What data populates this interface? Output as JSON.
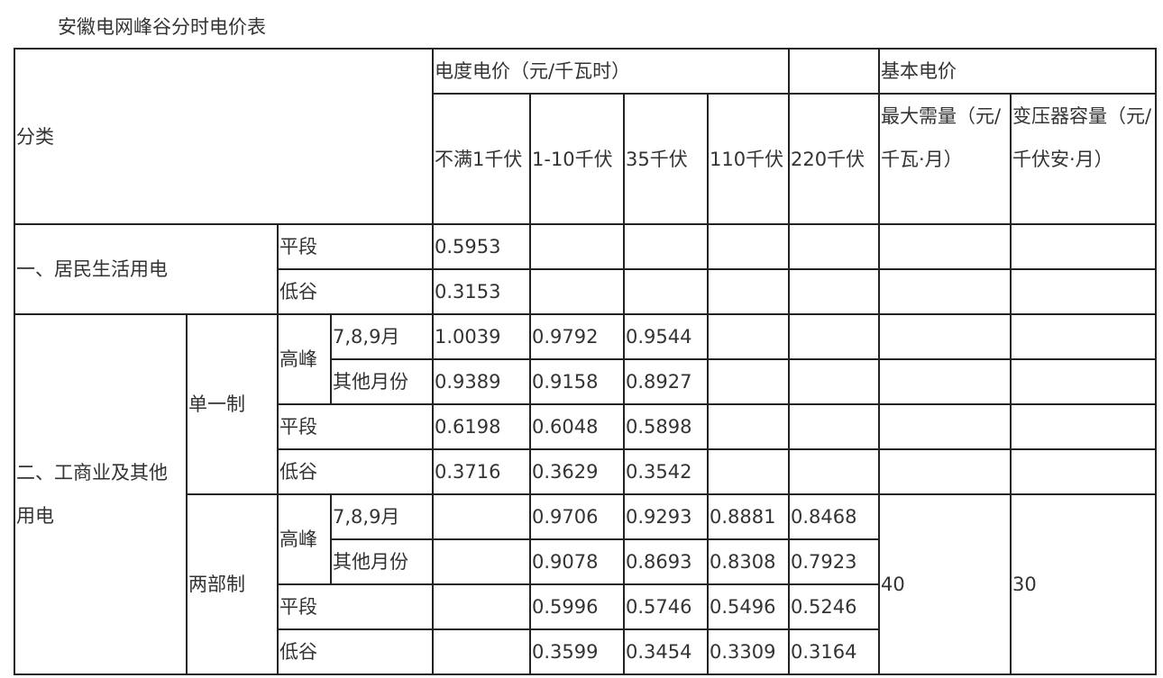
{
  "title": "安徽电网峰谷分时电价表",
  "header": {
    "category": "分类",
    "energy_price": "电度电价（元/千瓦时）",
    "basic_price": "基本电价",
    "voltages": [
      "不满1千伏",
      "1-10千伏",
      "35千伏",
      "110千伏",
      "220千伏"
    ],
    "max_demand": "最大需量（元/千瓦·月）",
    "transformer_capacity": "变压器容量（元/千伏安·月）"
  },
  "residential": {
    "label": "一、居民生活用电",
    "rows": [
      {
        "period": "平段",
        "values": [
          "0.5953"
        ]
      },
      {
        "period": "低谷",
        "values": [
          "0.3153"
        ]
      }
    ]
  },
  "commercial": {
    "label": "二、工商业及其他用电",
    "single": {
      "label": "单一制",
      "peak": "高峰",
      "rows": [
        {
          "period": "7,8,9月",
          "values": [
            "1.0039",
            "0.9792",
            "0.9544"
          ]
        },
        {
          "period": "其他月份",
          "values": [
            "0.9389",
            "0.9158",
            "0.8927"
          ]
        },
        {
          "period": "平段",
          "values": [
            "0.6198",
            "0.6048",
            "0.5898"
          ]
        },
        {
          "period": "低谷",
          "values": [
            "0.3716",
            "0.3629",
            "0.3542"
          ]
        }
      ]
    },
    "two_part": {
      "label": "两部制",
      "peak": "高峰",
      "max_demand": "40",
      "transformer_capacity": "30",
      "rows": [
        {
          "period": "7,8,9月",
          "values": [
            "",
            "0.9706",
            "0.9293",
            "0.8881",
            "0.8468"
          ]
        },
        {
          "period": "其他月份",
          "values": [
            "",
            "0.9078",
            "0.8693",
            "0.8308",
            "0.7923"
          ]
        },
        {
          "period": "平段",
          "values": [
            "",
            "0.5996",
            "0.5746",
            "0.5496",
            "0.5246"
          ]
        },
        {
          "period": "低谷",
          "values": [
            "",
            "0.3599",
            "0.3454",
            "0.3309",
            "0.3164"
          ]
        }
      ]
    }
  }
}
